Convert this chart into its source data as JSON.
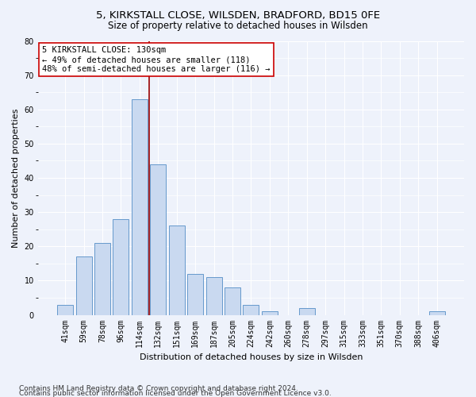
{
  "title1": "5, KIRKSTALL CLOSE, WILSDEN, BRADFORD, BD15 0FE",
  "title2": "Size of property relative to detached houses in Wilsden",
  "xlabel": "Distribution of detached houses by size in Wilsden",
  "ylabel": "Number of detached properties",
  "categories": [
    "41sqm",
    "59sqm",
    "78sqm",
    "96sqm",
    "114sqm",
    "132sqm",
    "151sqm",
    "169sqm",
    "187sqm",
    "205sqm",
    "224sqm",
    "242sqm",
    "260sqm",
    "278sqm",
    "297sqm",
    "315sqm",
    "333sqm",
    "351sqm",
    "370sqm",
    "388sqm",
    "406sqm"
  ],
  "values": [
    3,
    17,
    21,
    28,
    63,
    44,
    26,
    12,
    11,
    8,
    3,
    1,
    0,
    2,
    0,
    0,
    0,
    0,
    0,
    0,
    1
  ],
  "bar_color": "#c9d9f0",
  "bar_edge_color": "#6699cc",
  "vline_x_idx": 4.5,
  "vline_color": "#990000",
  "annotation_text": "5 KIRKSTALL CLOSE: 130sqm\n← 49% of detached houses are smaller (118)\n48% of semi-detached houses are larger (116) →",
  "annotation_box_color": "white",
  "annotation_box_edge": "#cc0000",
  "ylim": [
    0,
    80
  ],
  "yticks": [
    0,
    10,
    20,
    30,
    40,
    50,
    60,
    70,
    80
  ],
  "footnote1": "Contains HM Land Registry data © Crown copyright and database right 2024.",
  "footnote2": "Contains public sector information licensed under the Open Government Licence v3.0.",
  "background_color": "#eef2fb",
  "grid_color": "#ffffff",
  "title1_fontsize": 9.5,
  "title2_fontsize": 8.5,
  "xlabel_fontsize": 8,
  "ylabel_fontsize": 8,
  "tick_fontsize": 7,
  "annotation_fontsize": 7.5,
  "footnote_fontsize": 6.5
}
